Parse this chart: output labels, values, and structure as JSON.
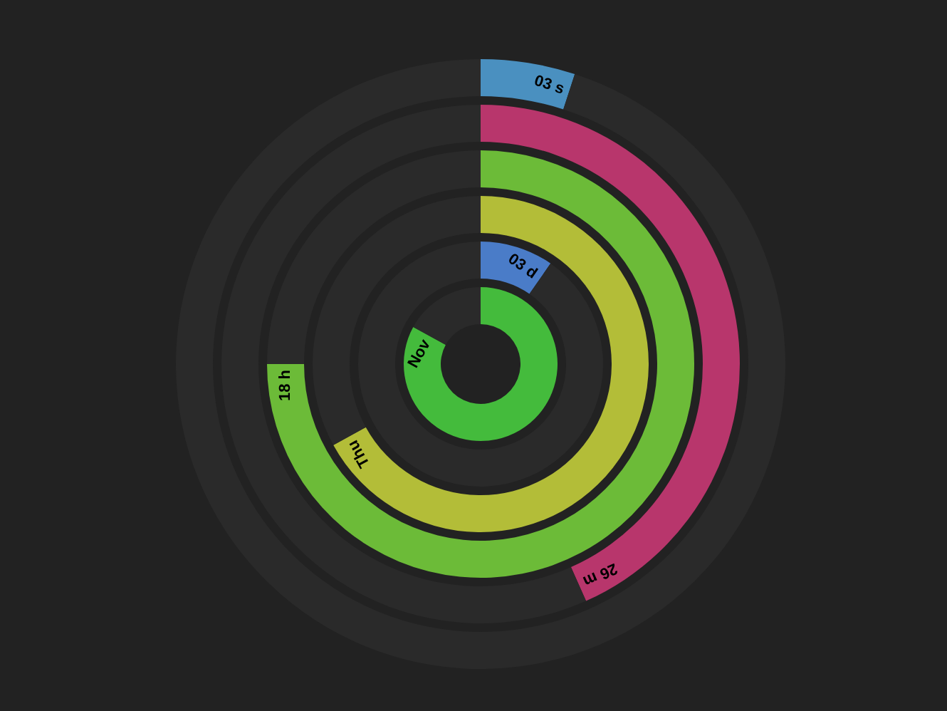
{
  "chart_data": [
    {
      "type": "donut",
      "legend": false,
      "categories": [
        null,
        null
      ],
      "values": [
        3,
        57
      ],
      "colors": [
        "#4a90c0",
        "#2a2a2a"
      ],
      "value_labels": [
        "03 s",
        null
      ]
    },
    {
      "type": "donut",
      "legend": false,
      "categories": [
        null,
        null
      ],
      "values": [
        26,
        34
      ],
      "colors": [
        "#b8366c",
        "#2a2a2a"
      ],
      "value_labels": [
        "26 m",
        null
      ]
    },
    {
      "type": "donut",
      "legend": false,
      "categories": [
        null,
        null
      ],
      "values": [
        18,
        6
      ],
      "colors": [
        "#6cbb38",
        "#2a2a2a"
      ],
      "value_labels": [
        "18 h",
        null
      ]
    },
    {
      "type": "donut",
      "legend": false,
      "categories": [
        null,
        null
      ],
      "values": [
        67,
        33
      ],
      "colors": [
        "#b3bd38",
        "#2a2a2a"
      ],
      "value_labels": [
        "Thu",
        null
      ]
    },
    {
      "type": "donut",
      "legend": false,
      "categories": [
        null,
        null
      ],
      "values": [
        3,
        28
      ],
      "colors": [
        "#4a7cc8",
        "#2a2a2a"
      ],
      "value_labels": [
        "03 d",
        null
      ]
    },
    {
      "type": "donut",
      "legend": false,
      "categories": [
        null,
        null
      ],
      "values": [
        83,
        17
      ],
      "colors": [
        "#44bb3c",
        "#2a2a2a"
      ],
      "value_labels": [
        "Nov",
        null
      ]
    }
  ]
}
